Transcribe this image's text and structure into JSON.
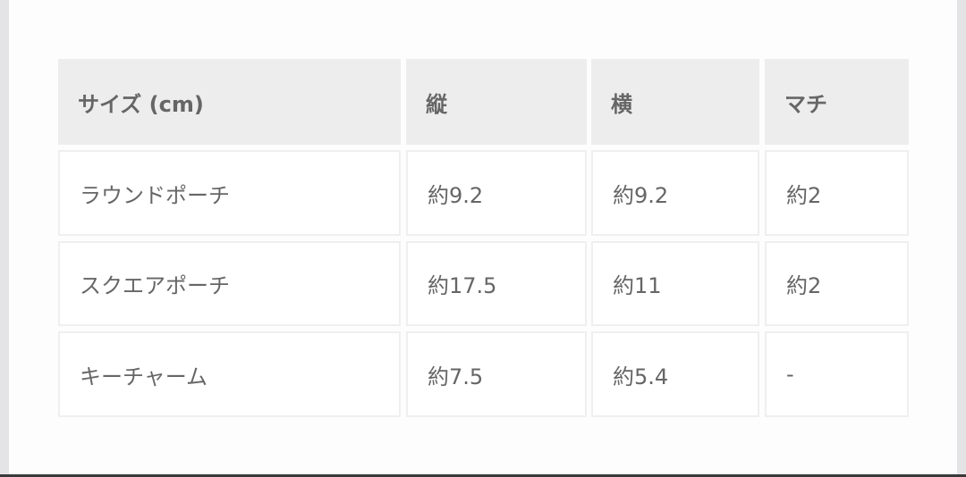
{
  "table": {
    "headers": [
      "サイズ (cm)",
      "縦",
      "横",
      "マチ"
    ],
    "rows": [
      [
        "ラウンドポーチ",
        "約9.2",
        "約9.2",
        "約2"
      ],
      [
        "スクエアポーチ",
        "約17.5",
        "約11",
        "約2"
      ],
      [
        "キーチャーム",
        "約7.5",
        "約5.4",
        "-"
      ]
    ]
  }
}
